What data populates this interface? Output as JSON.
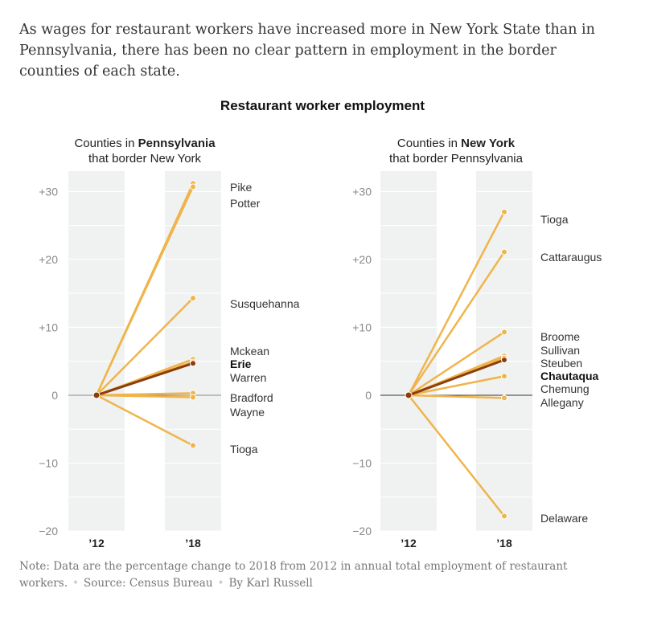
{
  "intro": "As wages for restaurant workers have increased more in New York State than in Pennsylvania, there has been no clear pattern in employment in the border counties of each state.",
  "note": {
    "text": "Note: Data are the percentage change to 2018 from 2012 in annual total employment of restaurant workers.",
    "source": "Source: Census Bureau",
    "byline": "By Karl Russell"
  },
  "colors": {
    "line": "#f0b44c",
    "highlight": "#8b3d0b",
    "band": "#f0f2f2",
    "zero": "#888888"
  },
  "chart_data": {
    "type": "line",
    "title": "Restaurant worker employment",
    "x": [
      "’12",
      "’18"
    ],
    "ylim": [
      -20,
      33
    ],
    "yticks": [
      -20,
      -10,
      0,
      10,
      20,
      30
    ],
    "yticklabels": [
      "−20",
      "−10",
      "0",
      "+10",
      "+20",
      "+30"
    ],
    "grid": true,
    "panels": [
      {
        "title_pre": "Counties in ",
        "title_bold": "Pennsylvania",
        "title_line2": "that border New York",
        "series": [
          {
            "name": "Pike",
            "values": [
              0,
              31.2
            ]
          },
          {
            "name": "Potter",
            "values": [
              0,
              30.7
            ]
          },
          {
            "name": "Susquehanna",
            "values": [
              0,
              14.3
            ]
          },
          {
            "name": "Mckean",
            "values": [
              0,
              5.3
            ]
          },
          {
            "name": "Erie",
            "values": [
              0,
              4.7
            ],
            "highlight": true
          },
          {
            "name": "Warren",
            "values": [
              0,
              4.9
            ]
          },
          {
            "name": "Bradford",
            "values": [
              0,
              0.3
            ]
          },
          {
            "name": "Wayne",
            "values": [
              0,
              -0.3
            ]
          },
          {
            "name": "Tioga",
            "values": [
              0,
              -7.4
            ]
          }
        ]
      },
      {
        "title_pre": "Counties in ",
        "title_bold": "New York",
        "title_line2": "that border Pennsylvania",
        "series": [
          {
            "name": "Tioga",
            "values": [
              0,
              27.0
            ]
          },
          {
            "name": "Cattaraugus",
            "values": [
              0,
              21.1
            ]
          },
          {
            "name": "Broome",
            "values": [
              0,
              9.3
            ]
          },
          {
            "name": "Sullivan",
            "values": [
              0,
              5.8
            ]
          },
          {
            "name": "Steuben",
            "values": [
              0,
              5.5
            ]
          },
          {
            "name": "Chautaqua",
            "values": [
              0,
              5.2
            ],
            "highlight": true
          },
          {
            "name": "Chemung",
            "values": [
              0,
              2.8
            ]
          },
          {
            "name": "Allegany",
            "values": [
              0,
              -0.4
            ]
          },
          {
            "name": "Delaware",
            "values": [
              0,
              -17.8
            ]
          }
        ]
      }
    ]
  }
}
